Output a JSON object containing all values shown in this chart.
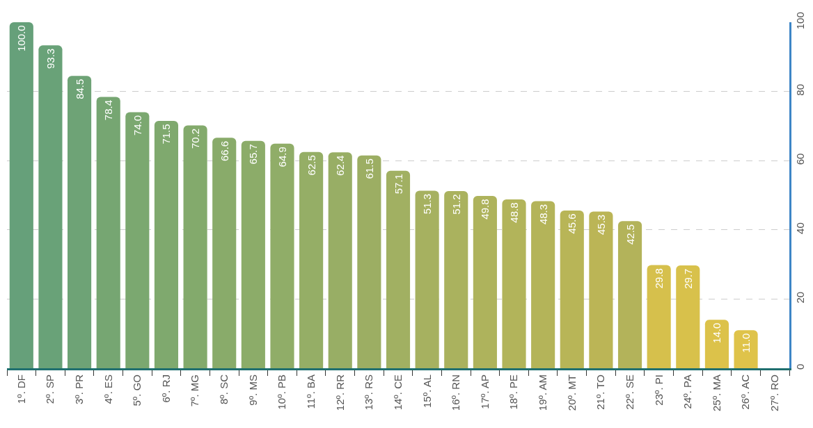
{
  "chart_data": {
    "type": "bar",
    "categories": [
      "1º. DF",
      "2º. SP",
      "3º. PR",
      "4º. ES",
      "5º. GO",
      "6º. RJ",
      "7º. MG",
      "8º. SC",
      "9º. MS",
      "10º. PB",
      "11º. BA",
      "12º. RR",
      "13º. RS",
      "14º. CE",
      "15º. AL",
      "16º. RN",
      "17º. AP",
      "18º. PE",
      "19º. AM",
      "20º. MT",
      "21º. TO",
      "22º. SE",
      "23º. PI",
      "24º. PA",
      "25º. MA",
      "26º. AC",
      "27º. RO"
    ],
    "values": [
      100.0,
      93.3,
      84.5,
      78.4,
      74.0,
      71.5,
      70.2,
      66.6,
      65.7,
      64.9,
      62.5,
      62.4,
      61.5,
      57.1,
      51.3,
      51.2,
      49.8,
      48.8,
      48.3,
      45.6,
      45.3,
      42.5,
      29.8,
      29.7,
      14.0,
      11.0,
      0
    ],
    "value_labels": [
      "100.0",
      "93.3",
      "84.5",
      "78.4",
      "74.0",
      "71.5",
      "70.2",
      "66.6",
      "65.7",
      "64.9",
      "62.5",
      "62.4",
      "61.5",
      "57.1",
      "51.3",
      "51.2",
      "49.8",
      "48.8",
      "48.3",
      "45.6",
      "45.3",
      "42.5",
      "29.8",
      "29.7",
      "14.0",
      "11.0",
      null
    ],
    "colors": [
      "#66a07a",
      "#69a278",
      "#6ea376",
      "#76a672",
      "#7ba870",
      "#7fa96e",
      "#83aa6c",
      "#89ab6a",
      "#8cac69",
      "#90ad68",
      "#95ae66",
      "#98ae65",
      "#9cae63",
      "#a1b062",
      "#a6b160",
      "#aab25e",
      "#aeb35c",
      "#b2b45a",
      "#b4b459",
      "#b8b557",
      "#bbb556",
      "#b3b35a",
      "#d6c04c",
      "#d8c14b",
      "#dcc24a",
      "#dfc34a",
      "#e0c449"
    ],
    "ylim": [
      0,
      100
    ],
    "yticks": [
      0,
      20,
      40,
      60,
      80,
      100
    ],
    "grid": "y",
    "legend": false
  }
}
